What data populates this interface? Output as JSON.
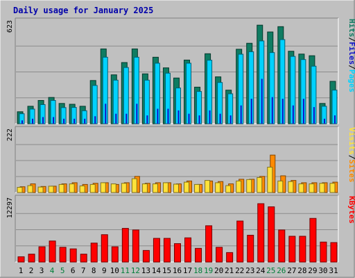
{
  "title": "Daily usage for January 2025",
  "colors": {
    "background": "#c0c0c0",
    "panel": "#c0c0c0",
    "hits": "#0f7c62",
    "files": "#00d2ff",
    "pages": "#1010c8",
    "visits": "#ffe23a",
    "sites": "#ff8a00",
    "kbytes": "#ff0000",
    "title": "#0000aa",
    "gridline": "#8c8c8c"
  },
  "chart_data": [
    {
      "type": "bar",
      "panel": "top",
      "max_label": "623",
      "ylim": [
        0,
        623
      ],
      "legend_right": [
        {
          "text": "Pages",
          "color": "#00d2ff"
        },
        {
          "text": "/",
          "color": "#000000"
        },
        {
          "text": "Files",
          "color": "#1010c8"
        },
        {
          "text": "/",
          "color": "#000000"
        },
        {
          "text": "Hits",
          "color": "#0f7c62"
        }
      ],
      "categories": [
        "1",
        "2",
        "3",
        "4",
        "5",
        "6",
        "7",
        "8",
        "9",
        "10",
        "11",
        "12",
        "13",
        "14",
        "15",
        "16",
        "17",
        "18",
        "19",
        "20",
        "21",
        "22",
        "23",
        "24",
        "25",
        "26",
        "27",
        "28",
        "29",
        "30",
        "31"
      ],
      "series": [
        {
          "name": "Hits",
          "values": [
            72,
            105,
            140,
            158,
            122,
            117,
            105,
            260,
            450,
            294,
            368,
            450,
            300,
            400,
            336,
            275,
            383,
            220,
            421,
            282,
            202,
            448,
            484,
            593,
            552,
            584,
            436,
            419,
            409,
            122,
            255
          ]
        },
        {
          "name": "Files",
          "values": [
            60,
            88,
            115,
            140,
            97,
            98,
            78,
            230,
            400,
            262,
            338,
            400,
            262,
            364,
            304,
            215,
            364,
            194,
            382,
            248,
            180,
            418,
            433,
            498,
            428,
            506,
            405,
            386,
            346,
            105,
            202
          ]
        },
        {
          "name": "Pages",
          "values": [
            20,
            30,
            40,
            40,
            30,
            30,
            30,
            45,
            120,
            60,
            60,
            120,
            50,
            90,
            90,
            80,
            60,
            50,
            80,
            60,
            50,
            110,
            150,
            270,
            160,
            150,
            110,
            150,
            100,
            30,
            50
          ]
        }
      ]
    },
    {
      "type": "bar",
      "panel": "middle",
      "max_label": "222",
      "ylim": [
        0,
        222
      ],
      "legend_right": [
        {
          "text": "Sites",
          "color": "#ff8a00"
        },
        {
          "text": "/",
          "color": "#000000"
        },
        {
          "text": "Visits",
          "color": "#ffe23a"
        }
      ],
      "categories": [
        "1",
        "2",
        "3",
        "4",
        "5",
        "6",
        "7",
        "8",
        "9",
        "10",
        "11",
        "12",
        "13",
        "14",
        "15",
        "16",
        "17",
        "18",
        "19",
        "20",
        "21",
        "22",
        "23",
        "24",
        "25",
        "26",
        "27",
        "28",
        "29",
        "30",
        "31"
      ],
      "series": [
        {
          "name": "Visits",
          "values": [
            18,
            24,
            19,
            22,
            28,
            30,
            23,
            28,
            34,
            30,
            32,
            48,
            30,
            30,
            34,
            29,
            36,
            28,
            42,
            34,
            24,
            40,
            45,
            52,
            88,
            40,
            38,
            30,
            30,
            32,
            32
          ]
        },
        {
          "name": "Sites",
          "values": [
            20,
            30,
            21,
            22,
            30,
            34,
            28,
            32,
            34,
            28,
            34,
            56,
            32,
            34,
            34,
            30,
            40,
            28,
            40,
            38,
            30,
            46,
            46,
            56,
            130,
            58,
            42,
            34,
            34,
            34,
            36
          ]
        }
      ]
    },
    {
      "type": "bar",
      "panel": "bottom",
      "max_label": "12297",
      "ylim": [
        0,
        12297
      ],
      "legend_right": [
        {
          "text": "KBytes",
          "color": "#ff0000"
        }
      ],
      "categories": [
        "1",
        "2",
        "3",
        "4",
        "5",
        "6",
        "7",
        "8",
        "9",
        "10",
        "11",
        "12",
        "13",
        "14",
        "15",
        "16",
        "17",
        "18",
        "19",
        "20",
        "21",
        "22",
        "23",
        "24",
        "25",
        "26",
        "27",
        "28",
        "29",
        "30",
        "31"
      ],
      "weekends": [
        "4",
        "5",
        "11",
        "12",
        "18",
        "19",
        "25",
        "26"
      ],
      "series": [
        {
          "name": "KBytes",
          "values": [
            1000,
            1500,
            2900,
            4000,
            2800,
            2500,
            1500,
            3600,
            5200,
            2900,
            6400,
            6100,
            2200,
            4500,
            4500,
            3500,
            4600,
            2600,
            6900,
            2800,
            1800,
            7800,
            5100,
            11100,
            10500,
            6100,
            4900,
            4900,
            8300,
            3800,
            3700
          ]
        }
      ]
    }
  ]
}
